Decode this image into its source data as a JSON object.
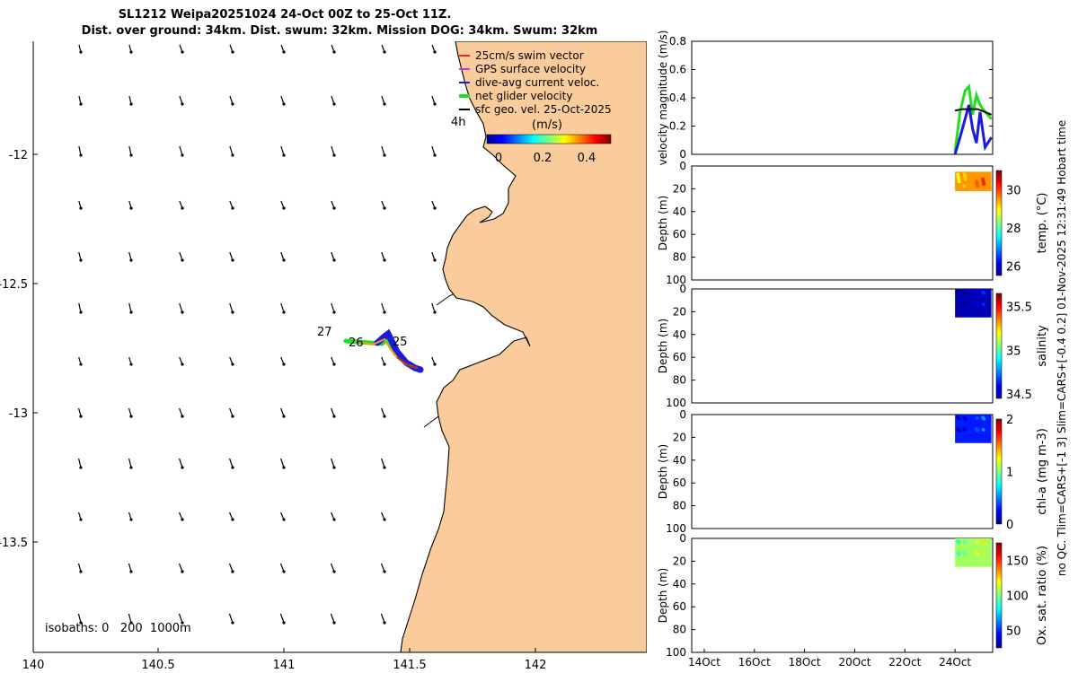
{
  "title": {
    "line1": "SL1212 Weipa20251024 24-Oct 00Z to 25-Oct 11Z.",
    "line2": "Dist. over ground: 34km. Dist. swum: 32km. Mission DOG: 34km. Swum: 32km"
  },
  "right_caption": "no QC. Tlim=CARS+[-1 3] Slim=CARS+[-0.4 0.2] 01-Nov-2025 12:31:49 Hobart time",
  "colors": {
    "land": "#FACB9B",
    "swim_vector": "#E8252B",
    "gps_velocity": "#CC33CC",
    "dive_avg": "#1A1AE0",
    "net_glider": "#22DD22",
    "sfc_geo": "#000000"
  },
  "map": {
    "x_ticks": [
      "140",
      "140.5",
      "141",
      "141.5",
      "142"
    ],
    "y_ticks": [
      "-12",
      "-12.5",
      "-13",
      "-13.5"
    ],
    "legend": [
      {
        "label": "25cm/s swim vector",
        "color": "#E8252B"
      },
      {
        "label": "GPS surface velocity",
        "color": "#CC33CC"
      },
      {
        "label": "dive-avg current veloc.",
        "color": "#1A1AE0"
      },
      {
        "label": "net glider velocity",
        "color": "#22DD22"
      },
      {
        "label": "sfc geo. vel. 25-Oct-2025",
        "color": "#000000"
      }
    ],
    "time_label": "4h",
    "colorbar_label": "(m/s)",
    "colorbar_ticks": [
      "0",
      "0.2",
      "0.4"
    ],
    "isobaths_text": "isobaths: 0   200  1000m",
    "track_labels": [
      "27",
      "26",
      "25"
    ]
  },
  "chart_data": [
    {
      "type": "line",
      "ylabel": "velocity magnitude (m/s)",
      "ylim": [
        0,
        0.8
      ],
      "y_ticks": [
        "0",
        "0.2",
        "0.4",
        "0.6",
        "0.8"
      ],
      "series": [
        {
          "color": "#22DD22",
          "x": [
            "24Oct",
            "24.2",
            "24.4",
            "24.55",
            "24.7",
            "24.85",
            "25.0",
            "25.2",
            "25.45"
          ],
          "values": [
            0.02,
            0.3,
            0.45,
            0.48,
            0.28,
            0.42,
            0.35,
            0.3,
            0.25
          ]
        },
        {
          "color": "#1A1AE0",
          "x": [
            "24Oct",
            "24.2",
            "24.4",
            "24.55",
            "24.7",
            "24.85",
            "25.0",
            "25.2",
            "25.45"
          ],
          "values": [
            0.0,
            0.12,
            0.25,
            0.35,
            0.18,
            0.08,
            0.3,
            0.05,
            0.12
          ]
        },
        {
          "color": "#000000",
          "x": [
            "24Oct",
            "24.3",
            "24.6",
            "24.9",
            "25.2",
            "25.45"
          ],
          "values": [
            0.31,
            0.32,
            0.32,
            0.32,
            0.3,
            0.28
          ]
        }
      ]
    },
    {
      "type": "heatmap",
      "ylabel": "Depth (m)",
      "y_ticks": [
        "0",
        "20",
        "40",
        "60",
        "80",
        "100"
      ],
      "colorbar_label": "temp. (°C)",
      "colorbar_ticks": [
        "26",
        "28",
        "30"
      ],
      "clim": [
        25.5,
        31
      ],
      "block_depth_range": [
        5,
        22
      ],
      "typical_value": 29.5
    },
    {
      "type": "heatmap",
      "ylabel": "Depth (m)",
      "y_ticks": [
        "0",
        "20",
        "40",
        "60",
        "80",
        "100"
      ],
      "colorbar_label": "salinity",
      "colorbar_ticks": [
        "34.5",
        "35",
        "35.5"
      ],
      "clim": [
        34.45,
        35.65
      ],
      "block_depth_range": [
        0,
        25
      ],
      "typical_value": 34.5
    },
    {
      "type": "heatmap",
      "ylabel": "Depth (m)",
      "y_ticks": [
        "0",
        "20",
        "40",
        "60",
        "80",
        "100"
      ],
      "colorbar_label": "chl-a (mg m-3)",
      "colorbar_ticks": [
        "0",
        "1",
        "2"
      ],
      "clim": [
        0,
        2
      ],
      "block_depth_range": [
        0,
        25
      ],
      "typical_value": 0.3
    },
    {
      "type": "heatmap",
      "ylabel": "Depth (m)",
      "y_ticks": [
        "0",
        "20",
        "40",
        "60",
        "80",
        "100"
      ],
      "colorbar_label": "Ox. sat. ratio (%)",
      "colorbar_ticks": [
        "50",
        "100",
        "150"
      ],
      "clim": [
        25,
        175
      ],
      "block_depth_range": [
        0,
        25
      ],
      "typical_value": 105
    }
  ],
  "time_axis": {
    "ticks": [
      "14Oct",
      "16Oct",
      "18Oct",
      "20Oct",
      "22Oct",
      "24Oct"
    ]
  }
}
